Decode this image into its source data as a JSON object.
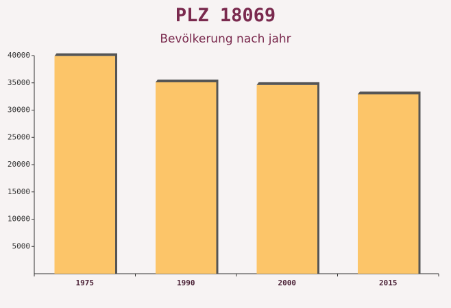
{
  "chart_data": {
    "type": "bar",
    "title": "PLZ 18069",
    "subtitle": "Bevölkerung nach jahr",
    "categories": [
      "1975",
      "1990",
      "2000",
      "2015"
    ],
    "values": [
      39900,
      35100,
      34600,
      32900
    ],
    "color": "#fcc05a",
    "ylim": [
      0,
      40000
    ],
    "yticks": [
      5000,
      10000,
      15000,
      20000,
      25000,
      30000,
      35000,
      40000
    ]
  }
}
